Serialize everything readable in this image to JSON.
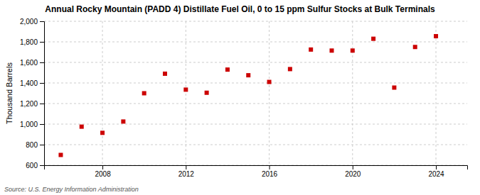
{
  "chart_data": {
    "type": "scatter",
    "title": "Annual Rocky Mountain (PADD 4) Distillate Fuel Oil, 0 to 15 ppm Sulfur Stocks at Bulk Terminals",
    "ylabel": "Thousand Barrels",
    "source": "Source: U.S. Energy Information Administration",
    "x": [
      2006,
      2007,
      2008,
      2009,
      2010,
      2011,
      2012,
      2013,
      2014,
      2015,
      2016,
      2017,
      2018,
      2019,
      2020,
      2021,
      2022,
      2023,
      2024
    ],
    "values": [
      700,
      975,
      915,
      1025,
      1300,
      1490,
      1335,
      1305,
      1530,
      1475,
      1410,
      1535,
      1725,
      1715,
      1715,
      1830,
      1355,
      1750,
      1855
    ],
    "color": "#CC0000",
    "marker": "square",
    "xlim": [
      2005.2,
      2025.5
    ],
    "xticks": [
      2008,
      2012,
      2016,
      2020,
      2024
    ],
    "ylim": [
      600,
      2000
    ],
    "yticks": [
      600,
      800,
      {
        "value": 1000,
        "label": "1,000"
      },
      {
        "value": 1200,
        "label": "1,200"
      },
      {
        "value": 1400,
        "label": "1,400"
      },
      {
        "value": 1600,
        "label": "1,600"
      },
      {
        "value": 1800,
        "label": "1,800"
      },
      {
        "value": 2000,
        "label": "2,000"
      }
    ],
    "grid": true
  }
}
